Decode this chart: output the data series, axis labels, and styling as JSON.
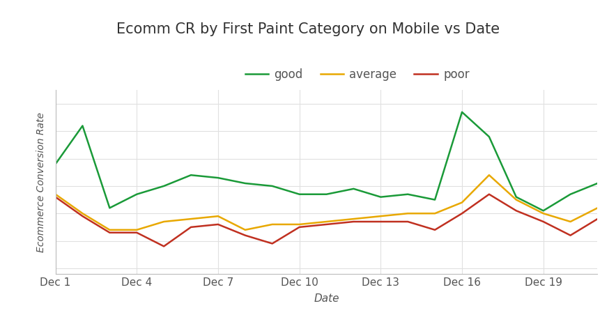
{
  "title": "Ecomm CR by First Paint Category on Mobile vs Date",
  "xlabel": "Date",
  "ylabel": "Ecommerce Conversion Rate",
  "legend_labels": [
    "good",
    "average",
    "poor"
  ],
  "colors": {
    "good": "#1a9a38",
    "average": "#e8a800",
    "poor": "#c03020"
  },
  "x_labels": [
    "Dec 1",
    "Dec 4",
    "Dec 7",
    "Dec 10",
    "Dec 13",
    "Dec 16",
    "Dec 19"
  ],
  "x_ticks": [
    0,
    3,
    6,
    9,
    12,
    15,
    18
  ],
  "good": [
    0.68,
    0.82,
    0.52,
    0.57,
    0.6,
    0.64,
    0.63,
    0.61,
    0.6,
    0.57,
    0.57,
    0.59,
    0.56,
    0.57,
    0.55,
    0.87,
    0.78,
    0.56,
    0.51,
    0.57,
    0.61
  ],
  "average": [
    0.57,
    0.5,
    0.44,
    0.44,
    0.47,
    0.48,
    0.49,
    0.44,
    0.46,
    0.46,
    0.47,
    0.48,
    0.49,
    0.5,
    0.5,
    0.54,
    0.64,
    0.55,
    0.5,
    0.47,
    0.52
  ],
  "poor": [
    0.56,
    0.49,
    0.43,
    0.43,
    0.38,
    0.45,
    0.46,
    0.42,
    0.39,
    0.45,
    0.46,
    0.47,
    0.47,
    0.47,
    0.44,
    0.5,
    0.57,
    0.51,
    0.47,
    0.42,
    0.48
  ],
  "background_color": "#ffffff",
  "grid_color": "#e0e0e0",
  "line_width": 1.8,
  "title_fontsize": 15,
  "axis_label_fontsize": 11,
  "tick_fontsize": 11,
  "legend_fontsize": 12
}
